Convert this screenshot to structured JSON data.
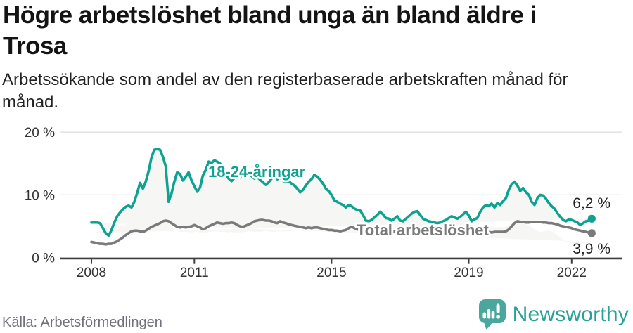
{
  "header": {
    "title_line1": "Högre arbetslöshet bland unga än bland äldre i",
    "title_line2": "Trosa",
    "subtitle_line1": "Arbetssökande som andel av den registerbaserade arbetskraften månad för",
    "subtitle_line2": "månad."
  },
  "footer": {
    "source": "Källa: Arbetsförmedlingen",
    "logo_text": "Newsworthy"
  },
  "colors": {
    "youth_line": "#0ea291",
    "total_line": "#7a7a7a",
    "area_fill": "#f4f4f2",
    "gridline": "#dcdcdc",
    "axis": "#3f3f3f",
    "axis_label": "#333333",
    "end_label_text": "#222222",
    "label_halo": "#ffffff",
    "logo_icon": "#4aa79d",
    "logo_text": "#2aa198"
  },
  "chart_data": {
    "type": "line",
    "title": "Högre arbetslöshet bland unga än bland äldre i Trosa",
    "subtitle": "Arbetssökande som andel av den registerbaserade arbetskraften månad för månad.",
    "source": "Källa: Arbetsförmedlingen",
    "x_start": "2008-01",
    "x_end": "2022-08",
    "x_frequency": "monthly",
    "ylim": [
      0,
      20
    ],
    "grid": "horizontal-only",
    "legend_position": "inline-labels",
    "y_ticks": [
      {
        "value": 0,
        "label": "0 %"
      },
      {
        "value": 10,
        "label": "10 %"
      },
      {
        "value": 20,
        "label": "20 %"
      }
    ],
    "x_ticks": [
      {
        "label": "2008",
        "month_index": 0
      },
      {
        "label": "2011",
        "month_index": 36
      },
      {
        "label": "2015",
        "month_index": 84
      },
      {
        "label": "2019",
        "month_index": 132
      },
      {
        "label": "2022",
        "month_index": 168
      }
    ],
    "series": [
      {
        "name": "18-24-åringar",
        "end_label": "6,2 %",
        "end_value": 6.2,
        "values": [
          5.6,
          5.6,
          5.6,
          5.5,
          4.7,
          3.9,
          3.5,
          4.4,
          5.6,
          6.6,
          7.2,
          7.7,
          8.1,
          8.3,
          8.0,
          8.9,
          10.3,
          11.9,
          11.0,
          12.1,
          13.8,
          16.0,
          17.2,
          17.3,
          17.2,
          16.1,
          14.5,
          8.9,
          10.2,
          12.1,
          13.6,
          13.3,
          12.3,
          12.9,
          13.6,
          12.3,
          11.4,
          10.5,
          11.2,
          13.1,
          14.0,
          15.3,
          15.1,
          15.5,
          15.3,
          15.0,
          14.2,
          13.3,
          12.6,
          12.2,
          12.7,
          13.3,
          12.8,
          13.5,
          14.0,
          13.6,
          13.0,
          12.6,
          12.9,
          12.4,
          12.0,
          11.6,
          12.0,
          12.6,
          13.0,
          12.5,
          12.8,
          12.3,
          12.0,
          12.2,
          11.8,
          11.5,
          11.0,
          10.4,
          10.8,
          11.5,
          12.1,
          12.5,
          13.2,
          12.9,
          12.4,
          11.8,
          11.0,
          10.6,
          10.0,
          9.1,
          8.9,
          8.6,
          8.4,
          8.0,
          8.4,
          8.2,
          7.8,
          7.6,
          7.5,
          6.8,
          5.9,
          5.8,
          6.0,
          6.4,
          6.8,
          7.3,
          6.9,
          6.3,
          6.2,
          5.9,
          6.2,
          6.6,
          5.9,
          5.8,
          6.2,
          6.6,
          7.0,
          7.3,
          7.4,
          6.8,
          6.2,
          6.0,
          5.8,
          5.7,
          5.6,
          5.5,
          5.6,
          5.8,
          6.0,
          6.3,
          6.6,
          6.4,
          6.2,
          6.5,
          6.9,
          7.3,
          6.7,
          5.8,
          6.1,
          6.3,
          7.3,
          8.0,
          8.4,
          8.2,
          8.6,
          8.0,
          8.7,
          8.4,
          9.0,
          9.5,
          10.8,
          11.7,
          12.1,
          11.5,
          10.6,
          11.1,
          10.4,
          10.0,
          8.9,
          8.4,
          9.5,
          10.0,
          9.9,
          9.4,
          8.7,
          8.2,
          7.8,
          7.1,
          6.5,
          6.0,
          5.8,
          6.1,
          6.0,
          5.8,
          5.6,
          5.2,
          5.5,
          5.8,
          5.9,
          6.2
        ]
      },
      {
        "name": "Total arbetslöshet",
        "end_label": "3,9 %",
        "end_value": 3.9,
        "values": [
          2.5,
          2.4,
          2.3,
          2.2,
          2.2,
          2.1,
          2.2,
          2.2,
          2.4,
          2.6,
          2.9,
          3.2,
          3.6,
          3.9,
          4.2,
          4.3,
          4.3,
          4.2,
          4.1,
          4.3,
          4.6,
          4.9,
          5.1,
          5.3,
          5.5,
          5.8,
          5.9,
          5.8,
          5.5,
          5.2,
          4.9,
          4.8,
          4.9,
          4.8,
          4.9,
          5.0,
          5.2,
          5.0,
          4.8,
          4.5,
          4.7,
          5.0,
          5.2,
          5.4,
          5.6,
          5.5,
          5.4,
          5.5,
          5.5,
          5.6,
          5.5,
          5.2,
          5.0,
          4.9,
          5.1,
          5.3,
          5.5,
          5.8,
          5.9,
          6.0,
          6.0,
          5.9,
          5.9,
          5.8,
          5.6,
          5.5,
          5.8,
          5.6,
          5.5,
          5.3,
          5.2,
          5.1,
          5.0,
          4.9,
          4.8,
          4.7,
          4.8,
          4.7,
          4.8,
          4.8,
          4.7,
          4.6,
          4.5,
          4.4,
          4.4,
          4.3,
          4.3,
          4.2,
          4.3,
          4.4,
          4.7,
          4.9,
          4.7,
          4.5,
          4.4,
          4.5,
          4.3,
          4.5,
          4.3,
          4.4,
          4.2,
          4.2,
          4.3,
          4.4,
          4.3,
          4.2,
          4.2,
          4.2,
          4.2,
          4.2,
          4.2,
          4.1,
          4.1,
          4.2,
          4.3,
          4.2,
          4.1,
          4.1,
          4.1,
          4.2,
          4.2,
          4.1,
          4.1,
          4.0,
          3.9,
          4.0,
          4.1,
          4.0,
          4.1,
          4.1,
          4.1,
          4.2,
          4.2,
          4.1,
          4.1,
          4.0,
          3.9,
          4.0,
          4.2,
          4.1,
          4.0,
          4.1,
          4.1,
          4.1,
          4.1,
          4.2,
          4.5,
          5.0,
          5.5,
          5.8,
          5.7,
          5.7,
          5.6,
          5.6,
          5.7,
          5.7,
          5.7,
          5.7,
          5.6,
          5.6,
          5.5,
          5.5,
          5.4,
          5.3,
          5.1,
          5.0,
          4.9,
          4.8,
          4.7,
          4.5,
          4.4,
          4.3,
          4.2,
          4.1,
          4.0,
          3.9
        ]
      }
    ]
  }
}
